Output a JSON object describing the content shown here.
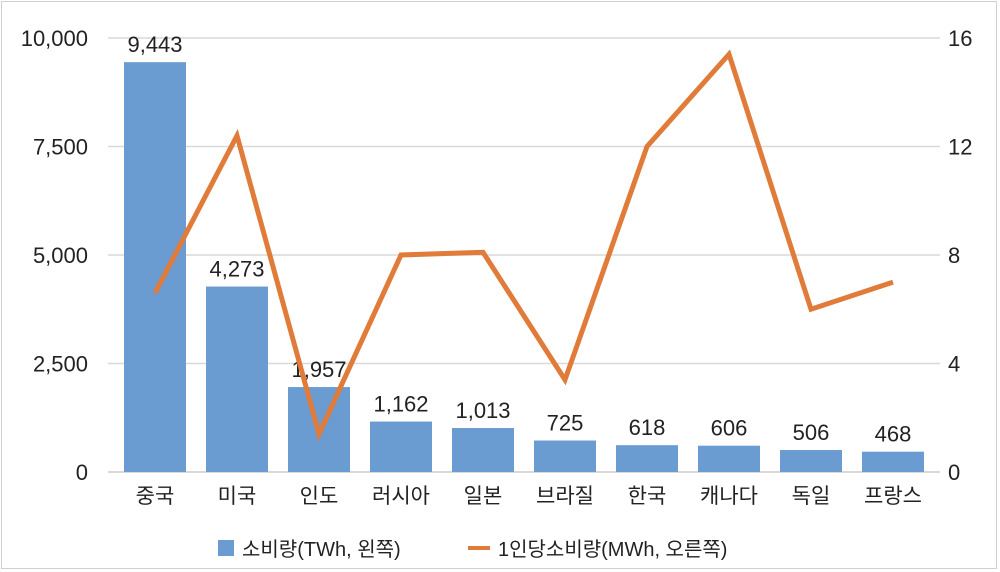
{
  "chart_data": {
    "type": "bar+line",
    "categories": [
      "중국",
      "미국",
      "인도",
      "러시아",
      "일본",
      "브라질",
      "한국",
      "캐나다",
      "독일",
      "프랑스"
    ],
    "series": [
      {
        "name": "소비량(TWh, 왼쪽)",
        "type": "bar",
        "axis": "left",
        "color": "#6a9bd1",
        "values": [
          9443,
          4273,
          1957,
          1162,
          1013,
          725,
          618,
          606,
          506,
          468
        ],
        "labels": [
          "9,443",
          "4,273",
          "1,957",
          "1,162",
          "1,013",
          "725",
          "618",
          "606",
          "506",
          "468"
        ]
      },
      {
        "name": "1인당소비량(MWh, 오른쪽)",
        "type": "line",
        "axis": "right",
        "color": "#e07b39",
        "values": [
          6.6,
          12.4,
          1.4,
          8.0,
          8.1,
          3.4,
          12.0,
          15.4,
          6.0,
          7.0
        ]
      }
    ],
    "left_axis": {
      "ylim": [
        0,
        10000
      ],
      "ticks": [
        "0",
        "2,500",
        "5,000",
        "7,500",
        "10,000"
      ]
    },
    "right_axis": {
      "ylim": [
        0,
        16
      ],
      "ticks": [
        "0",
        "4",
        "8",
        "12",
        "16"
      ]
    },
    "grid": true,
    "legend": "bottom"
  }
}
